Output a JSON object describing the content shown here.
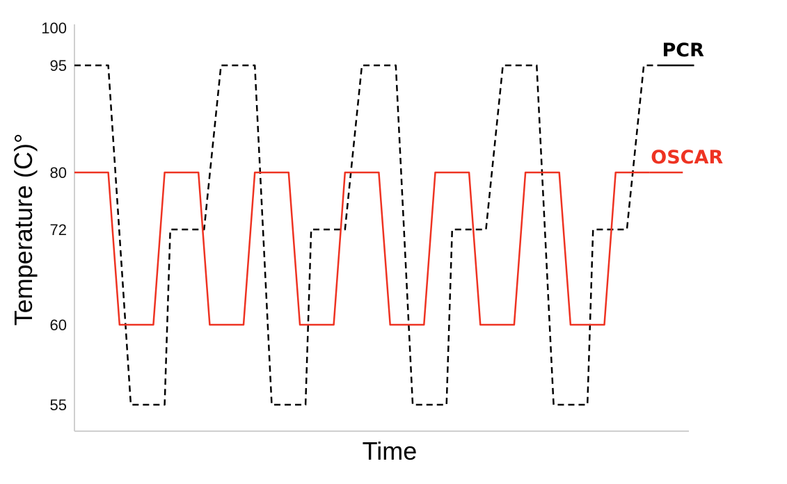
{
  "chart_data": {
    "type": "line",
    "title": "",
    "xlabel": "Time",
    "ylabel": "Temperature (C)°",
    "y_ticks": [
      55,
      60,
      72,
      80,
      95,
      100
    ],
    "grid": false,
    "x_tick_labels": false,
    "series": [
      {
        "name": "PCR",
        "color": "#000000",
        "style": "dashed",
        "points": [
          [
            0,
            95
          ],
          [
            6,
            95
          ],
          [
            10,
            55
          ],
          [
            16,
            55
          ],
          [
            17,
            72
          ],
          [
            23,
            72
          ],
          [
            26,
            95
          ],
          [
            32,
            95
          ],
          [
            35,
            55
          ],
          [
            41,
            55
          ],
          [
            42,
            72
          ],
          [
            48,
            72
          ],
          [
            51,
            95
          ],
          [
            57,
            95
          ],
          [
            60,
            55
          ],
          [
            66,
            55
          ],
          [
            67,
            72
          ],
          [
            73,
            72
          ],
          [
            76,
            95
          ],
          [
            82,
            95
          ],
          [
            85,
            55
          ],
          [
            91,
            55
          ],
          [
            92,
            72
          ],
          [
            98,
            72
          ],
          [
            101,
            95
          ],
          [
            104,
            95
          ]
        ]
      },
      {
        "name": "OSCAR",
        "color": "#ee3322",
        "style": "solid",
        "points": [
          [
            0,
            80
          ],
          [
            6,
            80
          ],
          [
            8,
            60
          ],
          [
            14,
            60
          ],
          [
            16,
            80
          ],
          [
            22,
            80
          ],
          [
            24,
            60
          ],
          [
            30,
            60
          ],
          [
            32,
            80
          ],
          [
            38,
            80
          ],
          [
            40,
            60
          ],
          [
            46,
            60
          ],
          [
            48,
            80
          ],
          [
            54,
            80
          ],
          [
            56,
            60
          ],
          [
            62,
            60
          ],
          [
            64,
            80
          ],
          [
            70,
            80
          ],
          [
            72,
            60
          ],
          [
            78,
            60
          ],
          [
            80,
            80
          ],
          [
            86,
            80
          ],
          [
            88,
            60
          ],
          [
            94,
            60
          ],
          [
            96,
            80
          ],
          [
            102,
            80
          ]
        ]
      }
    ]
  }
}
